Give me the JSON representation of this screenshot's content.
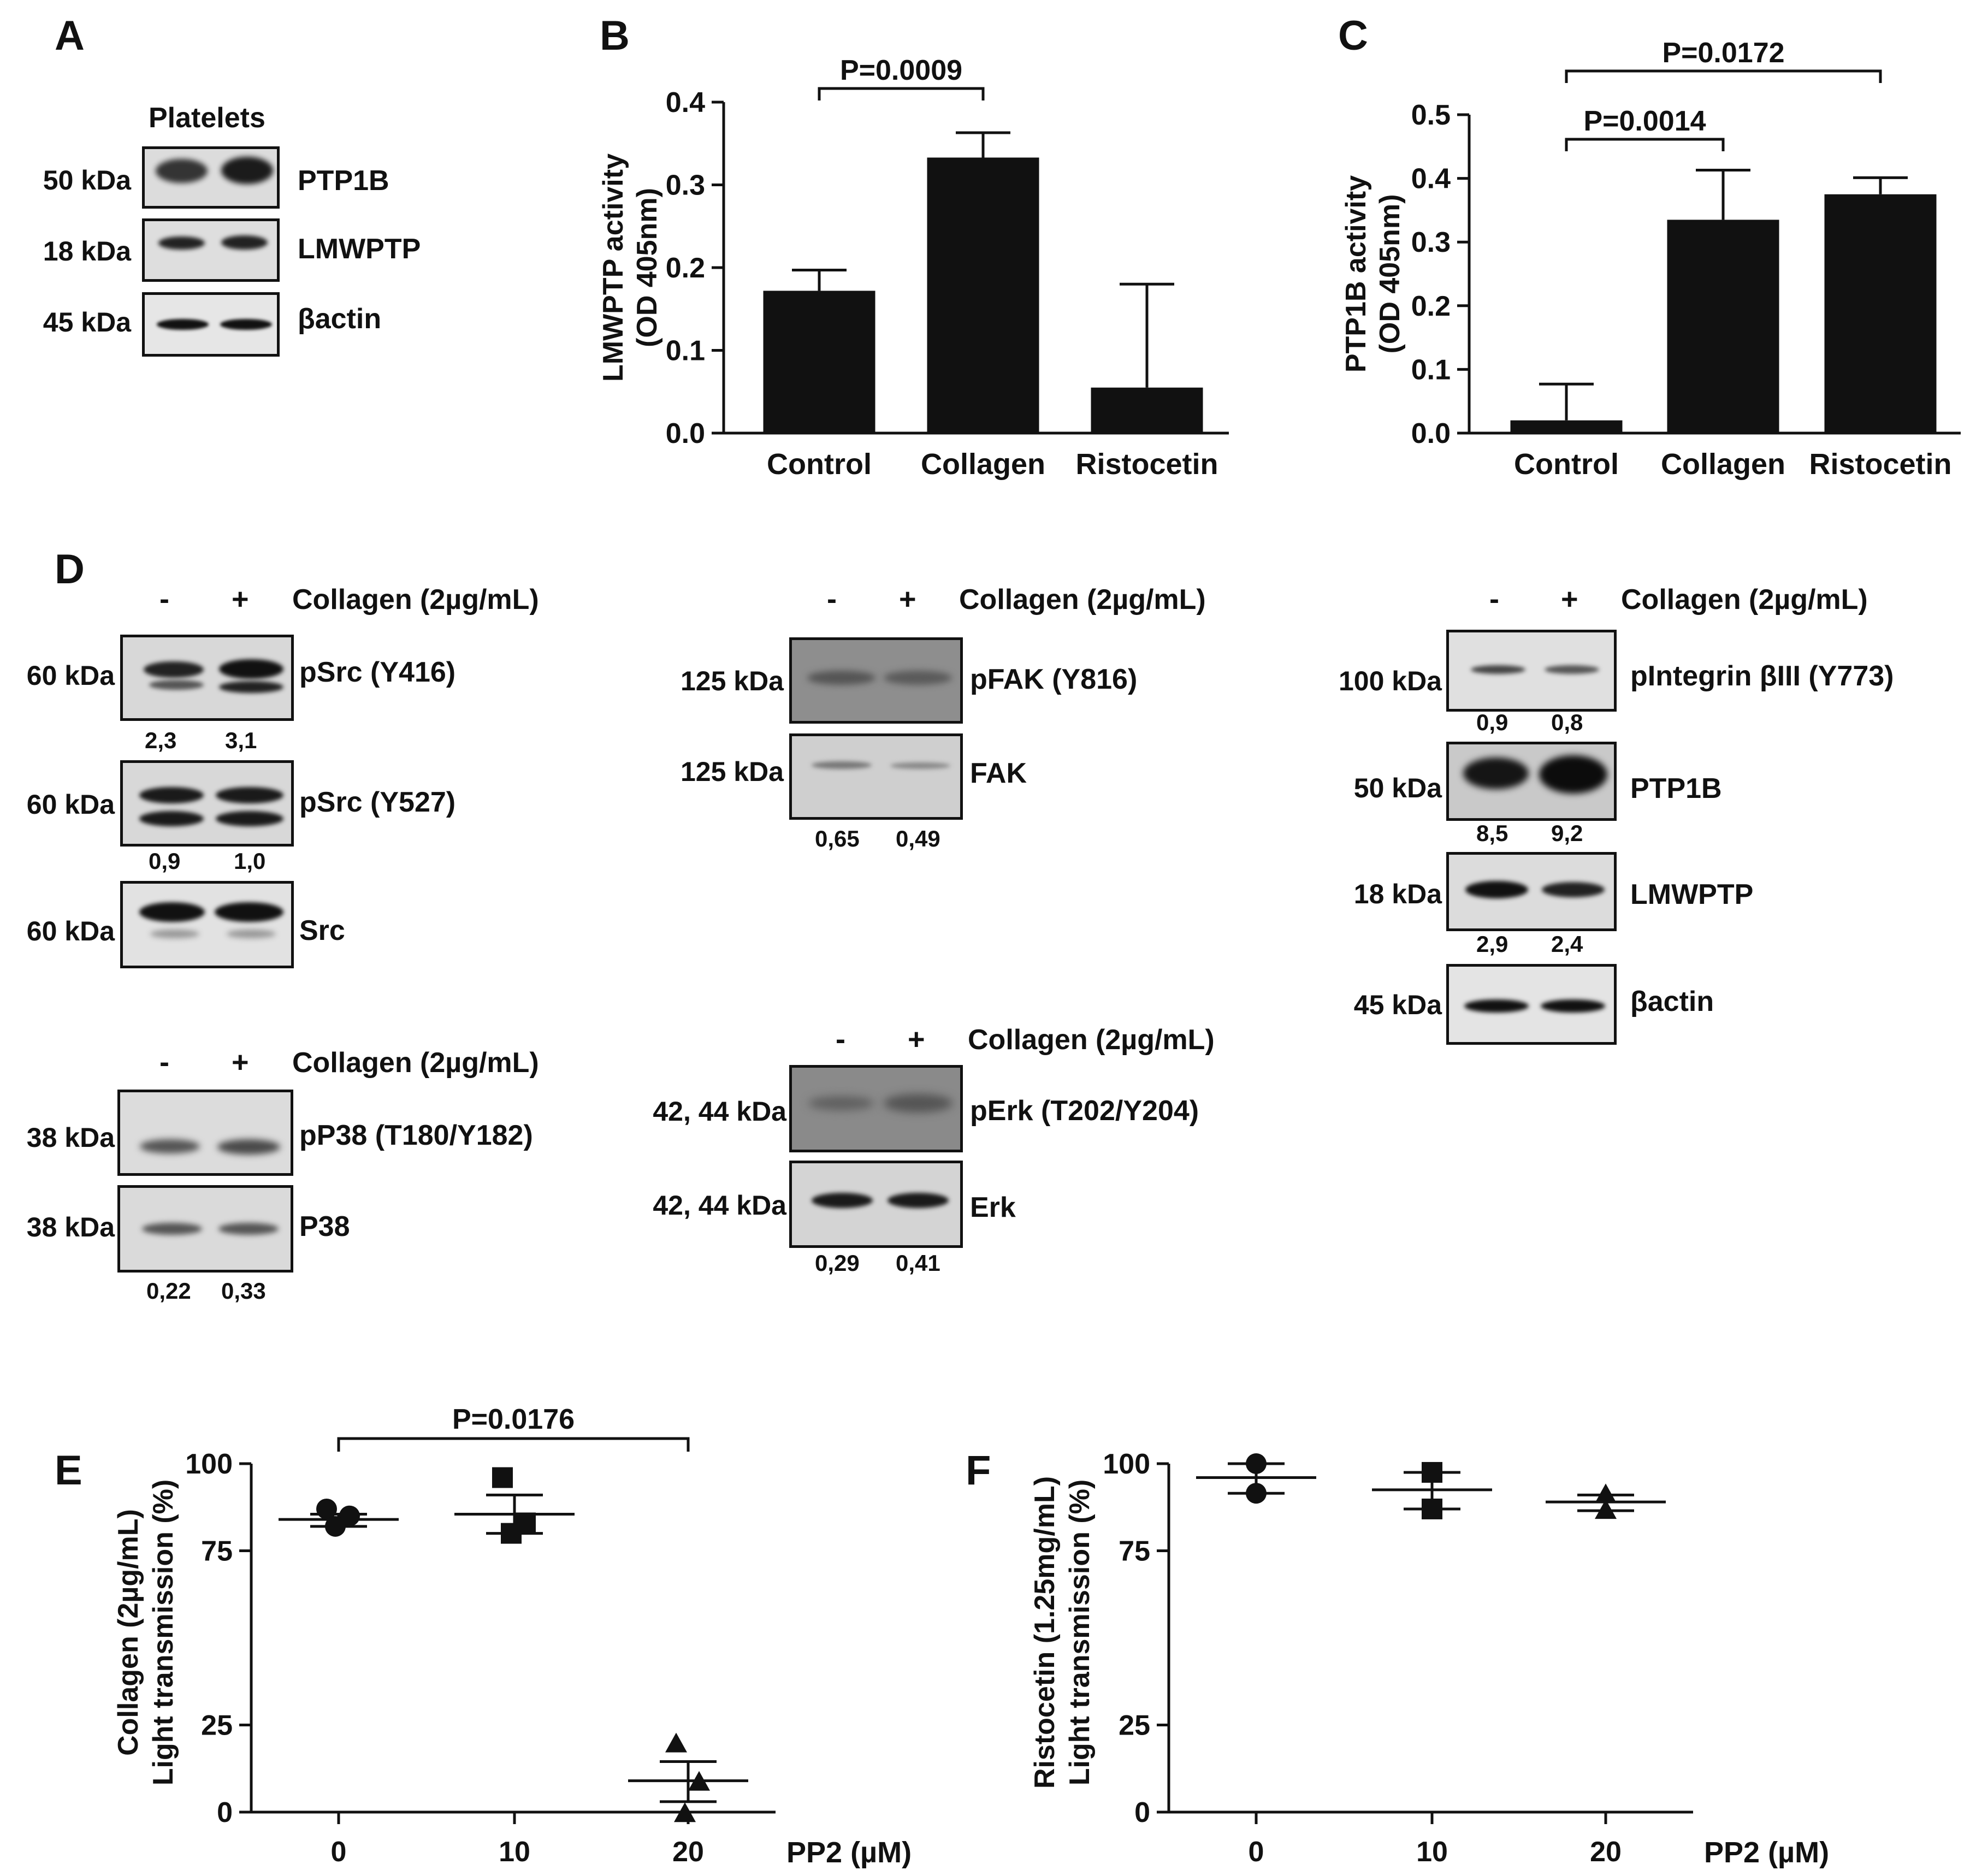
{
  "panel_letters": [
    "A",
    "B",
    "C",
    "D",
    "E",
    "F"
  ],
  "panel_a": {
    "header": "Platelets",
    "rows": [
      {
        "kda": "50 kDa",
        "protein": "PTP1B"
      },
      {
        "kda": "18 kDa",
        "protein": "LMWPTP"
      },
      {
        "kda": "45 kDa",
        "protein": "βactin"
      }
    ]
  },
  "panel_d": {
    "lane_minus": "-",
    "lane_plus": "+",
    "treatment": "Collagen (2µg/mL)",
    "src": {
      "rows": [
        {
          "kda": "60 kDa",
          "protein": "pSrc (Y416)",
          "quant": [
            "2,3",
            "3,1"
          ]
        },
        {
          "kda": "60 kDa",
          "protein": "pSrc (Y527)",
          "quant": [
            "0,9",
            "1,0"
          ]
        },
        {
          "kda": "60 kDa",
          "protein": "Src",
          "quant": []
        }
      ]
    },
    "fak": {
      "rows": [
        {
          "kda": "125 kDa",
          "protein": "pFAK (Y816)",
          "quant": []
        },
        {
          "kda": "125 kDa",
          "protein": "FAK",
          "quant": [
            "0,65",
            "0,49"
          ]
        }
      ]
    },
    "integrin": {
      "rows": [
        {
          "kda": "100 kDa",
          "protein": "pIntegrin βIII (Y773)",
          "quant": [
            "0,9",
            "0,8"
          ]
        },
        {
          "kda": "50 kDa",
          "protein": "PTP1B",
          "quant": [
            "8,5",
            "9,2"
          ]
        },
        {
          "kda": "18 kDa",
          "protein": "LMWPTP",
          "quant": [
            "2,9",
            "2,4"
          ]
        },
        {
          "kda": "45 kDa",
          "protein": "βactin",
          "quant": []
        }
      ]
    },
    "p38": {
      "rows": [
        {
          "kda": "38 kDa",
          "protein": "pP38 (T180/Y182)",
          "quant": []
        },
        {
          "kda": "38 kDa",
          "protein": "P38",
          "quant": [
            "0,22",
            "0,33"
          ]
        }
      ]
    },
    "erk": {
      "rows": [
        {
          "kda": "42, 44 kDa",
          "protein": "pErk (T202/Y204)",
          "quant": []
        },
        {
          "kda": "42, 44 kDa",
          "protein": "Erk",
          "quant": [
            "0,29",
            "0,41"
          ]
        }
      ]
    }
  },
  "chart_data": [
    {
      "panel": "B",
      "type": "bar",
      "categories": [
        "Control",
        "Collagen",
        "Ristocetin"
      ],
      "values": [
        0.172,
        0.333,
        0.055
      ],
      "error_upper": [
        0.197,
        0.363,
        0.18
      ],
      "ylabel": [
        "LMWPTP activity",
        "(OD 405nm)"
      ],
      "ylim": [
        0,
        0.4
      ],
      "yticks": [
        "0.0",
        "0.1",
        "0.2",
        "0.3",
        "0.4"
      ],
      "annotations": [
        {
          "text": "P=0.0009",
          "from": 0,
          "to": 1
        }
      ]
    },
    {
      "panel": "C",
      "type": "bar",
      "categories": [
        "Control",
        "Collagen",
        "Ristocetin"
      ],
      "values": [
        0.02,
        0.335,
        0.375
      ],
      "error_upper": [
        0.077,
        0.413,
        0.401
      ],
      "ylabel": [
        "PTP1B activity",
        "(OD 405nm)"
      ],
      "ylim": [
        0,
        0.5
      ],
      "yticks": [
        "0.0",
        "0.1",
        "0.2",
        "0.3",
        "0.4",
        "0.5"
      ],
      "annotations": [
        {
          "text": "P=0.0014",
          "from": 0,
          "to": 1
        },
        {
          "text": "P=0.0172",
          "from": 0,
          "to": 2
        }
      ]
    },
    {
      "panel": "E",
      "type": "scatter",
      "categories": [
        "0",
        "10",
        "20"
      ],
      "xlabel": "PP2 (µM)",
      "ylabel": [
        "Collagen (2µg/mL)",
        "Light transmission (%)"
      ],
      "ylim": [
        0,
        100
      ],
      "yticks": [
        "0",
        "25",
        "75",
        "100"
      ],
      "series": [
        {
          "name": "0",
          "marker": "circle",
          "points": [
            87,
            85,
            82
          ],
          "mean": 84,
          "sem": [
            82,
            85.5
          ]
        },
        {
          "name": "10",
          "marker": "square",
          "points": [
            96,
            83,
            80
          ],
          "mean": 85.5,
          "sem": [
            80,
            91
          ]
        },
        {
          "name": "20",
          "marker": "triangle",
          "points": [
            19.5,
            8.5,
            -0.5
          ],
          "mean": 9,
          "sem": [
            3,
            14.5
          ]
        }
      ],
      "annotations": [
        {
          "text": "P=0.0176",
          "from": 0,
          "to": 2
        }
      ]
    },
    {
      "panel": "F",
      "type": "scatter",
      "categories": [
        "0",
        "10",
        "20"
      ],
      "xlabel": "PP2 (µM)",
      "ylabel": [
        "Ristocetin (1.25mg/mL)",
        "Light transmission (%)"
      ],
      "ylim": [
        0,
        100
      ],
      "yticks": [
        "0",
        "25",
        "75",
        "100"
      ],
      "series": [
        {
          "name": "0",
          "marker": "circle",
          "points": [
            100,
            91.5
          ],
          "mean": 96,
          "sem": [
            91.5,
            100
          ]
        },
        {
          "name": "10",
          "marker": "square",
          "points": [
            97.5,
            87
          ],
          "mean": 92.5,
          "sem": [
            87,
            97.5
          ]
        },
        {
          "name": "20",
          "marker": "triangle",
          "points": [
            91,
            86.5
          ],
          "mean": 89,
          "sem": [
            86.5,
            91
          ]
        }
      ]
    }
  ]
}
